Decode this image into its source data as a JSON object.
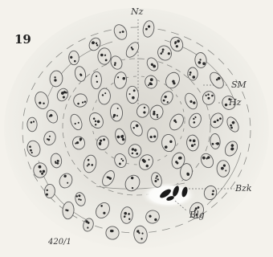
{
  "figure": {
    "number": "19",
    "magnification": "420/1"
  },
  "labels": {
    "nz": "Nz",
    "sm": "SM",
    "hz": "Hz",
    "bzk": "Bzk",
    "blg": "Blg"
  },
  "colors": {
    "background": "#f4f2ec",
    "nucleus_outline": "#5a5a5a",
    "nucleus_fill": "#e4e2dc",
    "nucleolus": "#2a2a2a",
    "blood_cell": "#1a1a1a",
    "vessel": "#ffffff",
    "line": "#777777"
  }
}
